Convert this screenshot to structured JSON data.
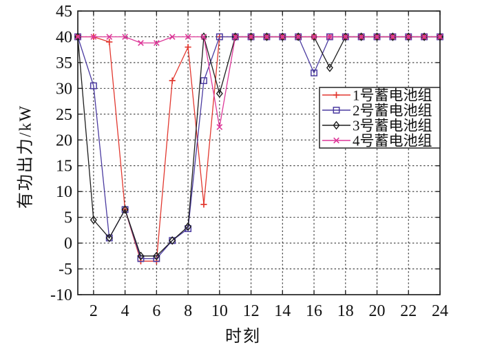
{
  "chart_data": {
    "type": "line",
    "title": "",
    "xlabel": "时刻",
    "ylabel": "有功出力/kW",
    "xlim": [
      1,
      24
    ],
    "ylim": [
      -10,
      45
    ],
    "xticks": [
      2,
      4,
      6,
      8,
      10,
      12,
      14,
      16,
      18,
      20,
      22,
      24
    ],
    "yticks": [
      -10,
      -5,
      0,
      5,
      10,
      15,
      20,
      25,
      30,
      35,
      40,
      45
    ],
    "grid": true,
    "grid_style": "dashed",
    "legend_position": "inside-right-middle",
    "x": [
      1,
      2,
      3,
      4,
      5,
      6,
      7,
      8,
      9,
      10,
      11,
      12,
      13,
      14,
      15,
      16,
      17,
      18,
      19,
      20,
      21,
      22,
      23,
      24
    ],
    "series": [
      {
        "name": "1号蓄电池组",
        "color": "#e2372e",
        "marker": "plus",
        "values": [
          40,
          40,
          39,
          6.5,
          -3.5,
          -3.5,
          31.5,
          38,
          7.5,
          40,
          40,
          40,
          40,
          40,
          40,
          40,
          40,
          40,
          40,
          40,
          40,
          40,
          40,
          40
        ]
      },
      {
        "name": "2号蓄电池组",
        "color": "#4a3aa0",
        "marker": "square",
        "values": [
          40,
          30.5,
          1,
          6.5,
          -3,
          -3,
          0.5,
          2.8,
          31.5,
          40,
          40,
          40,
          40,
          40,
          40,
          33,
          40,
          40,
          40,
          40,
          40,
          40,
          40,
          40
        ]
      },
      {
        "name": "3号蓄电池组",
        "color": "#1c1c1c",
        "marker": "diamond",
        "values": [
          40,
          4.5,
          1,
          6.5,
          -2.5,
          -2.5,
          0.5,
          3.2,
          40,
          29,
          40,
          40,
          40,
          40,
          40,
          40,
          34,
          40,
          40,
          40,
          40,
          40,
          40,
          40
        ]
      },
      {
        "name": "4号蓄电池组",
        "color": "#dd3798",
        "marker": "x",
        "values": [
          40,
          40,
          40,
          40,
          38.8,
          38.8,
          40,
          40,
          40,
          22.5,
          40,
          40,
          40,
          40,
          40,
          40,
          40,
          40,
          40,
          40,
          40,
          40,
          40,
          40
        ]
      }
    ],
    "colors": {
      "axis": "#222222",
      "grid": "#333333",
      "tick_label": "#111111",
      "background": "#ffffff"
    }
  }
}
